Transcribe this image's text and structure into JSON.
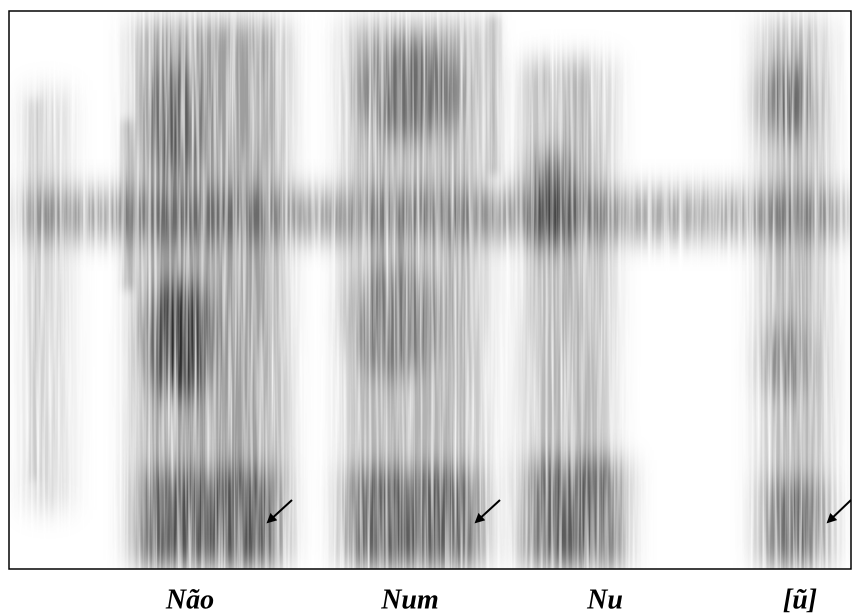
{
  "labels": [
    "Não",
    "Num",
    "Nu",
    "[ũ]"
  ]
}
